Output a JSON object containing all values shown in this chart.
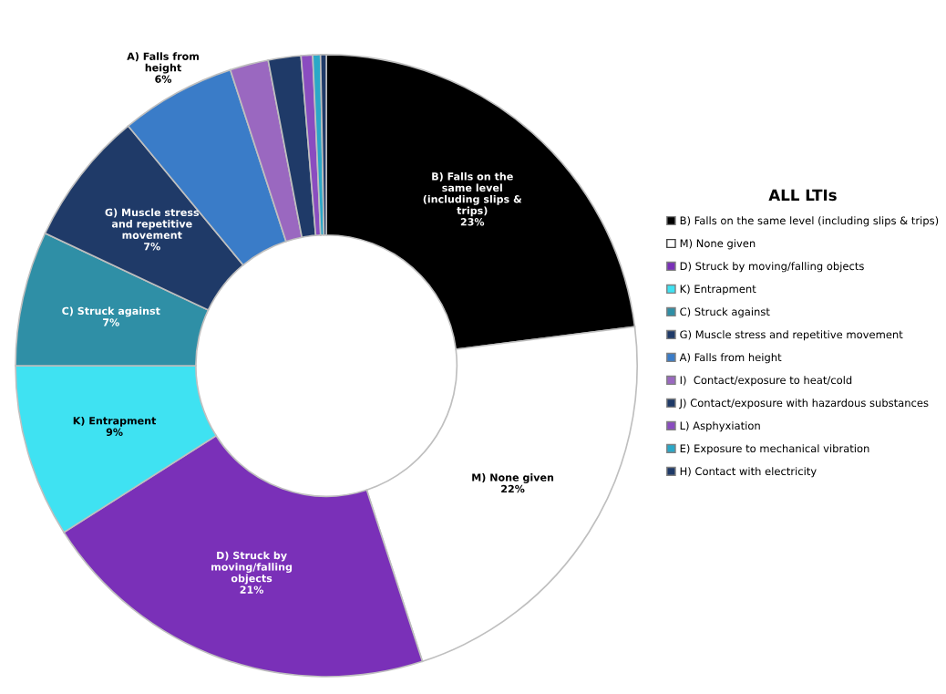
{
  "chart_data": {
    "type": "donut",
    "legend_title": "ALL LTIs",
    "legend": "right",
    "categories": [
      "B) Falls on the same level (including slips & trips)",
      "M) None given",
      "D) Struck by moving/falling objects",
      "K) Entrapment",
      "C) Struck against",
      "G) Muscle stress and repetitive movement",
      "A) Falls from height",
      "I)  Contact/exposure to heat/cold",
      "J) Contact/exposure with hazardous substances",
      "L) Asphyxiation",
      "E) Exposure to mechanical vibration",
      "H) Contact with electricity"
    ],
    "values": [
      23,
      22,
      21,
      9,
      7,
      7,
      6,
      2,
      1.7,
      0.6,
      0.4,
      0.3
    ],
    "colors": [
      "#000000",
      "#ffffff",
      "#7a30b8",
      "#3fe2f2",
      "#2f8fa6",
      "#1f3a68",
      "#3a7cc8",
      "#9a68c0",
      "#1f3a68",
      "#8a4cc0",
      "#2aa8c8",
      "#1f3a68"
    ],
    "value_labels": [
      "23%",
      "22%",
      "21%",
      "9%",
      "7%",
      "7%",
      "6%",
      null,
      null,
      null,
      null,
      null
    ]
  }
}
